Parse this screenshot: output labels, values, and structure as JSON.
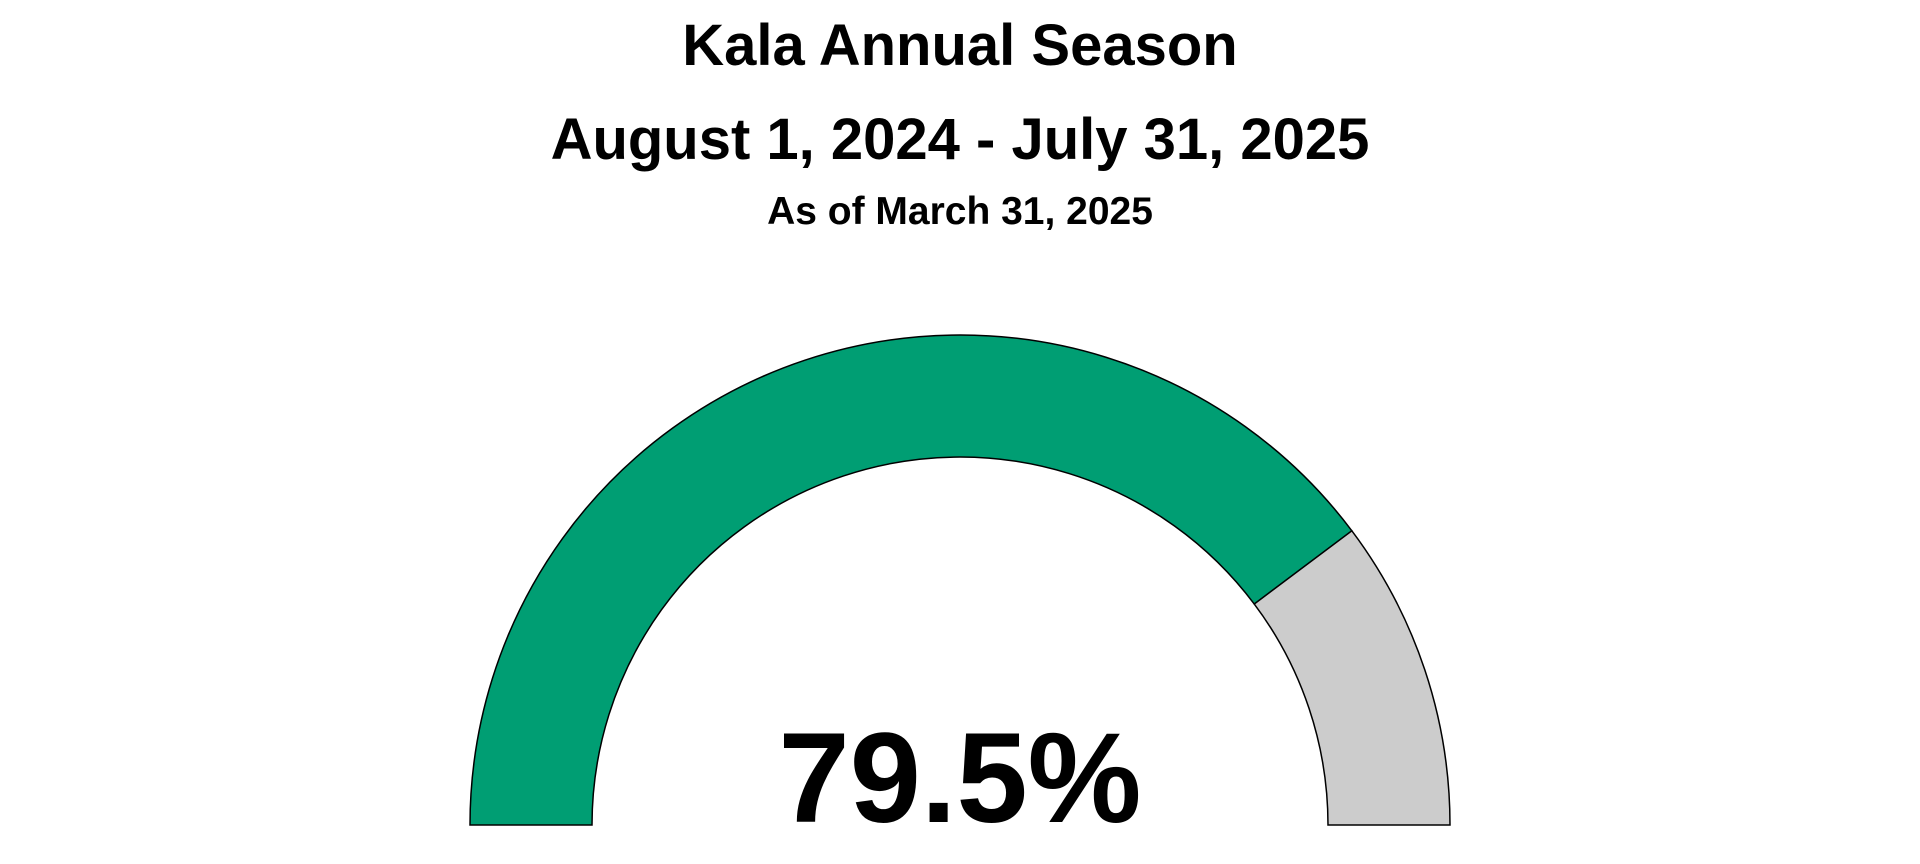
{
  "chart_data": {
    "type": "gauge",
    "title": "Kala Annual Season",
    "subtitle": "August 1, 2024 - July 31, 2025",
    "as_of": "As of March 31, 2025",
    "value": 79.5,
    "value_label": "79.5%",
    "range": [
      0,
      100
    ],
    "colors": {
      "filled": "#009E73",
      "remaining": "#CCCCCC",
      "outline": "#000000"
    }
  }
}
